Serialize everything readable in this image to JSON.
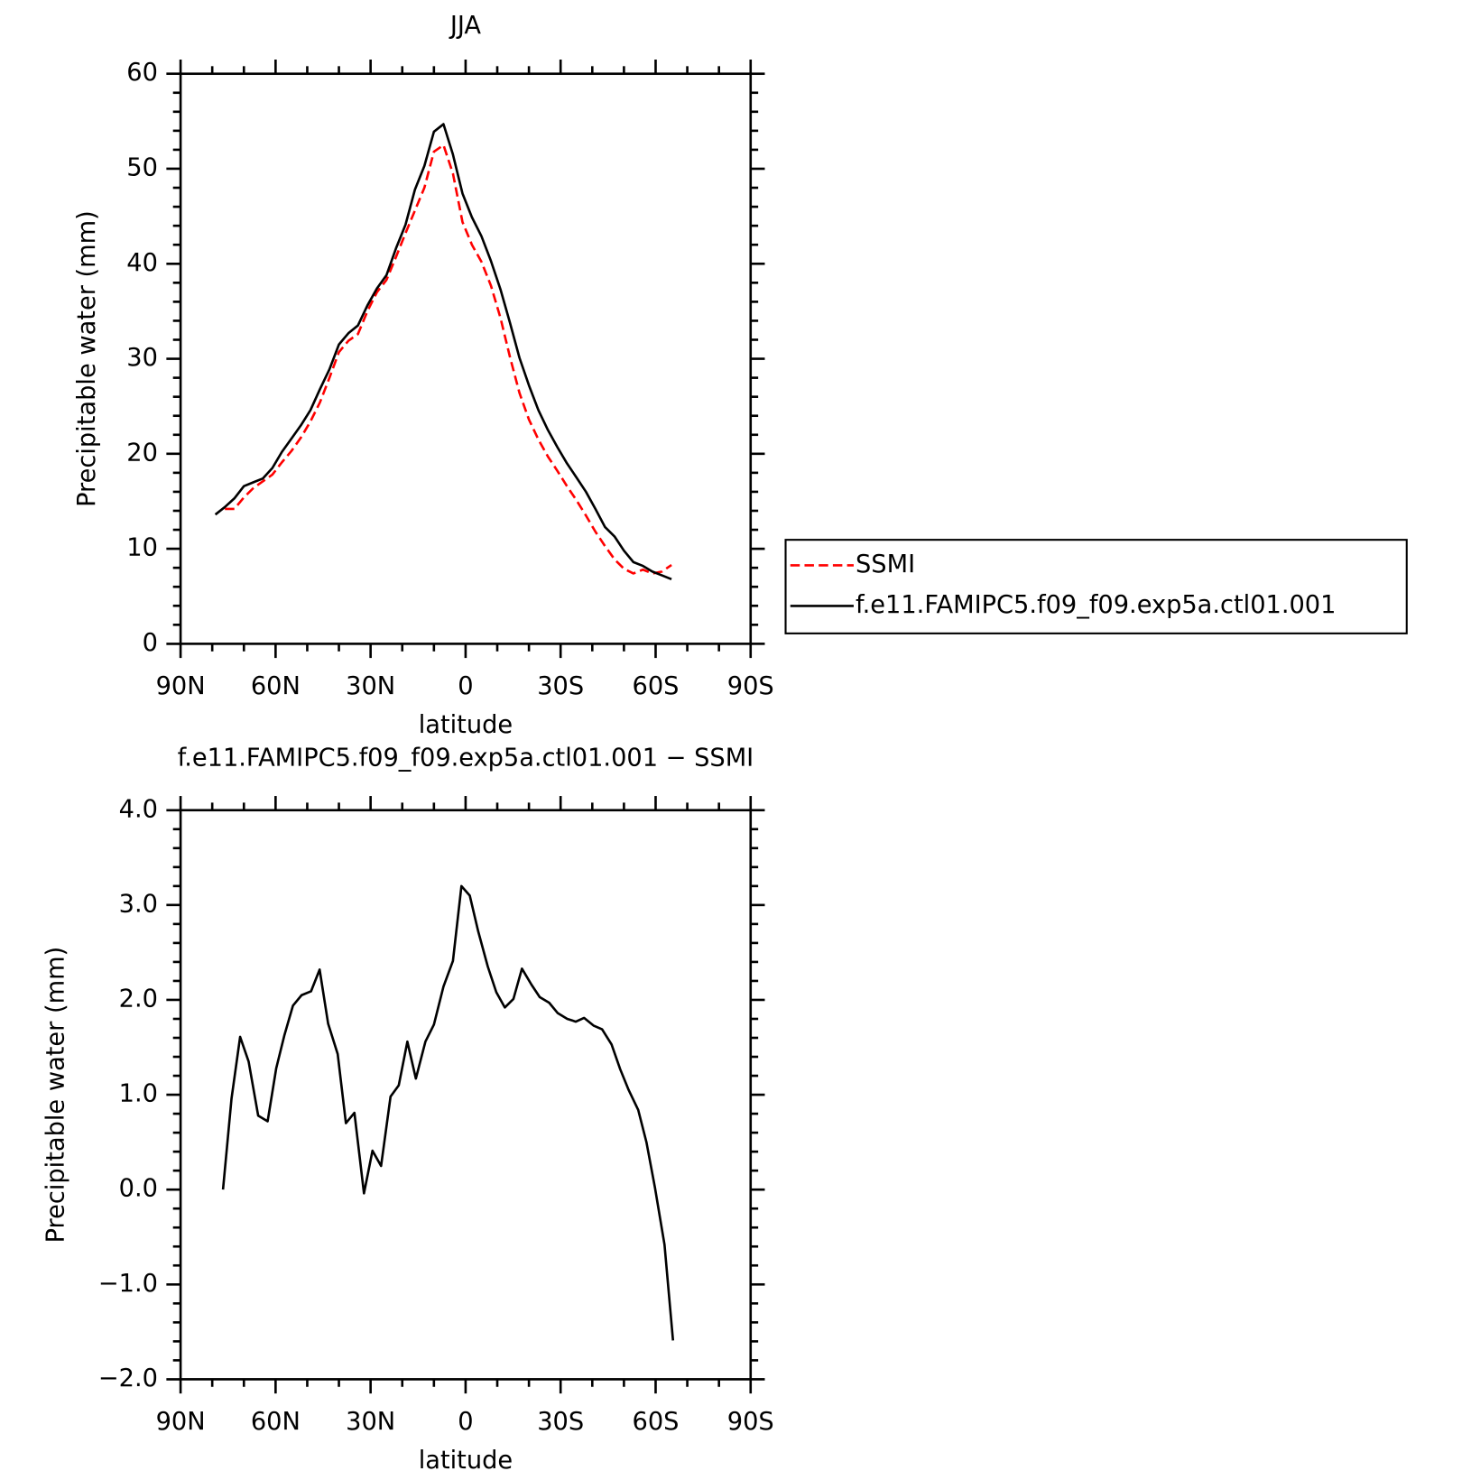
{
  "chart_data": [
    {
      "type": "line",
      "title": "JJA",
      "xlabel": "latitude",
      "ylabel": "Precipitable water (mm)",
      "x": [
        79,
        76,
        73,
        70,
        67,
        64,
        61,
        58,
        55,
        52,
        49,
        46,
        43,
        40,
        37,
        34,
        31,
        28,
        25,
        22,
        19,
        16,
        13,
        10,
        7,
        4,
        1,
        -2,
        -5,
        -8,
        -11,
        -14,
        -17,
        -20,
        -23,
        -26,
        -29,
        -32,
        -35,
        -38,
        -41,
        -44,
        -47,
        -50,
        -53,
        -56,
        -59,
        -62,
        -65
      ],
      "series": [
        {
          "name": "SSMI",
          "color": "#ff0000",
          "linestyle": "dashed",
          "values": [
            null,
            14.2,
            14.2,
            15.4,
            16.4,
            17.1,
            17.8,
            19.1,
            20.3,
            21.7,
            23.4,
            25.4,
            28.0,
            30.7,
            31.9,
            32.6,
            35.0,
            37.0,
            38.3,
            40.7,
            43.2,
            45.6,
            48.0,
            51.8,
            52.5,
            49.5,
            44.4,
            42.0,
            40.2,
            37.7,
            34.3,
            30.2,
            26.4,
            23.6,
            21.5,
            19.7,
            18.2,
            16.6,
            15.1,
            13.5,
            11.8,
            10.3,
            8.9,
            7.9,
            7.4,
            7.8,
            7.4,
            7.6,
            8.3
          ]
        },
        {
          "name": "f.e11.FAMIPC5.f09_f09.exp5a.ctl01.001",
          "color": "#000000",
          "linestyle": "solid",
          "values": [
            13.6,
            14.4,
            15.3,
            16.6,
            17.0,
            17.4,
            18.5,
            20.2,
            21.6,
            23.0,
            24.6,
            26.8,
            28.9,
            31.5,
            32.7,
            33.5,
            35.6,
            37.4,
            38.8,
            41.6,
            44.1,
            47.8,
            50.3,
            53.9,
            54.7,
            51.5,
            47.4,
            44.9,
            42.9,
            40.3,
            37.3,
            33.8,
            30.1,
            27.2,
            24.6,
            22.5,
            20.7,
            19.0,
            17.5,
            16.0,
            14.2,
            12.3,
            11.3,
            9.8,
            8.6,
            8.2,
            7.6,
            7.2,
            6.8
          ]
        }
      ],
      "xlim": [
        90,
        -90
      ],
      "xticks": [
        {
          "value": 90,
          "label": "90N"
        },
        {
          "value": 60,
          "label": "60N"
        },
        {
          "value": 30,
          "label": "30N"
        },
        0,
        {
          "value": -30,
          "label": "30S"
        },
        {
          "value": -60,
          "label": "60S"
        },
        {
          "value": -90,
          "label": "90S"
        }
      ],
      "xminorticks": [
        80,
        70,
        50,
        40,
        20,
        10,
        -10,
        -20,
        -40,
        -50,
        -70,
        -80
      ],
      "ylim": [
        0,
        60
      ],
      "yticks": [
        0,
        10,
        20,
        30,
        40,
        50,
        60
      ],
      "yminorticks": [
        2,
        4,
        6,
        8,
        12,
        14,
        16,
        18,
        22,
        24,
        26,
        28,
        32,
        34,
        36,
        38,
        42,
        44,
        46,
        48,
        52,
        54,
        56,
        58
      ],
      "legend": "right"
    },
    {
      "type": "line",
      "title": "f.e11.FAMIPC5.f09_f09.exp5a.ctl01.001 − SSMI",
      "xlabel": "latitude",
      "ylabel": "Precipitable water (mm)",
      "x": [
        76.6,
        73.9,
        71.2,
        68.5,
        65.5,
        62.5,
        59.8,
        57.2,
        54.5,
        51.8,
        48.8,
        46.1,
        43.4,
        40.4,
        37.8,
        35.1,
        32.1,
        29.4,
        26.7,
        23.7,
        21.1,
        18.4,
        15.7,
        12.7,
        10.0,
        7.0,
        4.0,
        1.3,
        -1.3,
        -4.0,
        -7.0,
        -9.7,
        -12.4,
        -15.1,
        -17.8,
        -20.8,
        -23.4,
        -26.4,
        -29.1,
        -32.1,
        -34.8,
        -37.4,
        -40.4,
        -43.1,
        -46.1,
        -48.8,
        -51.5,
        -54.5,
        -57.1,
        -59.8,
        -62.8,
        -65.5
      ],
      "values": [
        0.0,
        0.96,
        1.61,
        1.35,
        0.78,
        0.72,
        1.28,
        1.63,
        1.94,
        2.05,
        2.09,
        2.32,
        1.75,
        1.43,
        0.7,
        0.81,
        -0.04,
        0.41,
        0.25,
        0.98,
        1.1,
        1.56,
        1.17,
        1.56,
        1.74,
        2.14,
        2.41,
        3.2,
        3.1,
        2.72,
        2.35,
        2.08,
        1.92,
        2.01,
        2.33,
        2.16,
        2.03,
        1.97,
        1.86,
        1.8,
        1.77,
        1.81,
        1.73,
        1.69,
        1.53,
        1.27,
        1.05,
        0.84,
        0.5,
        0.02,
        -0.58,
        -1.59
      ],
      "color": "#000000",
      "xlim": [
        90,
        -90
      ],
      "xticks": [
        {
          "value": 90,
          "label": "90N"
        },
        {
          "value": 60,
          "label": "60N"
        },
        {
          "value": 30,
          "label": "30N"
        },
        0,
        {
          "value": -30,
          "label": "30S"
        },
        {
          "value": -60,
          "label": "60S"
        },
        {
          "value": -90,
          "label": "90S"
        }
      ],
      "xminorticks": [
        80,
        70,
        50,
        40,
        20,
        10,
        -10,
        -20,
        -40,
        -50,
        -70,
        -80
      ],
      "ylim": [
        -2,
        4
      ],
      "yticks": [
        {
          "value": -2,
          "label": "−2.0"
        },
        {
          "value": -1,
          "label": "−1.0"
        },
        {
          "value": 0,
          "label": "0.0"
        },
        {
          "value": 1,
          "label": "1.0"
        },
        {
          "value": 2,
          "label": "2.0"
        },
        {
          "value": 3,
          "label": "3.0"
        },
        {
          "value": 4,
          "label": "4.0"
        }
      ],
      "yminorticks": [
        -1.8,
        -1.6,
        -1.4,
        -1.2,
        -0.8,
        -0.6,
        -0.4,
        -0.2,
        0.2,
        0.4,
        0.6,
        0.8,
        1.2,
        1.4,
        1.6,
        1.8,
        2.2,
        2.4,
        2.6,
        2.8,
        3.2,
        3.4,
        3.6,
        3.8
      ]
    }
  ]
}
